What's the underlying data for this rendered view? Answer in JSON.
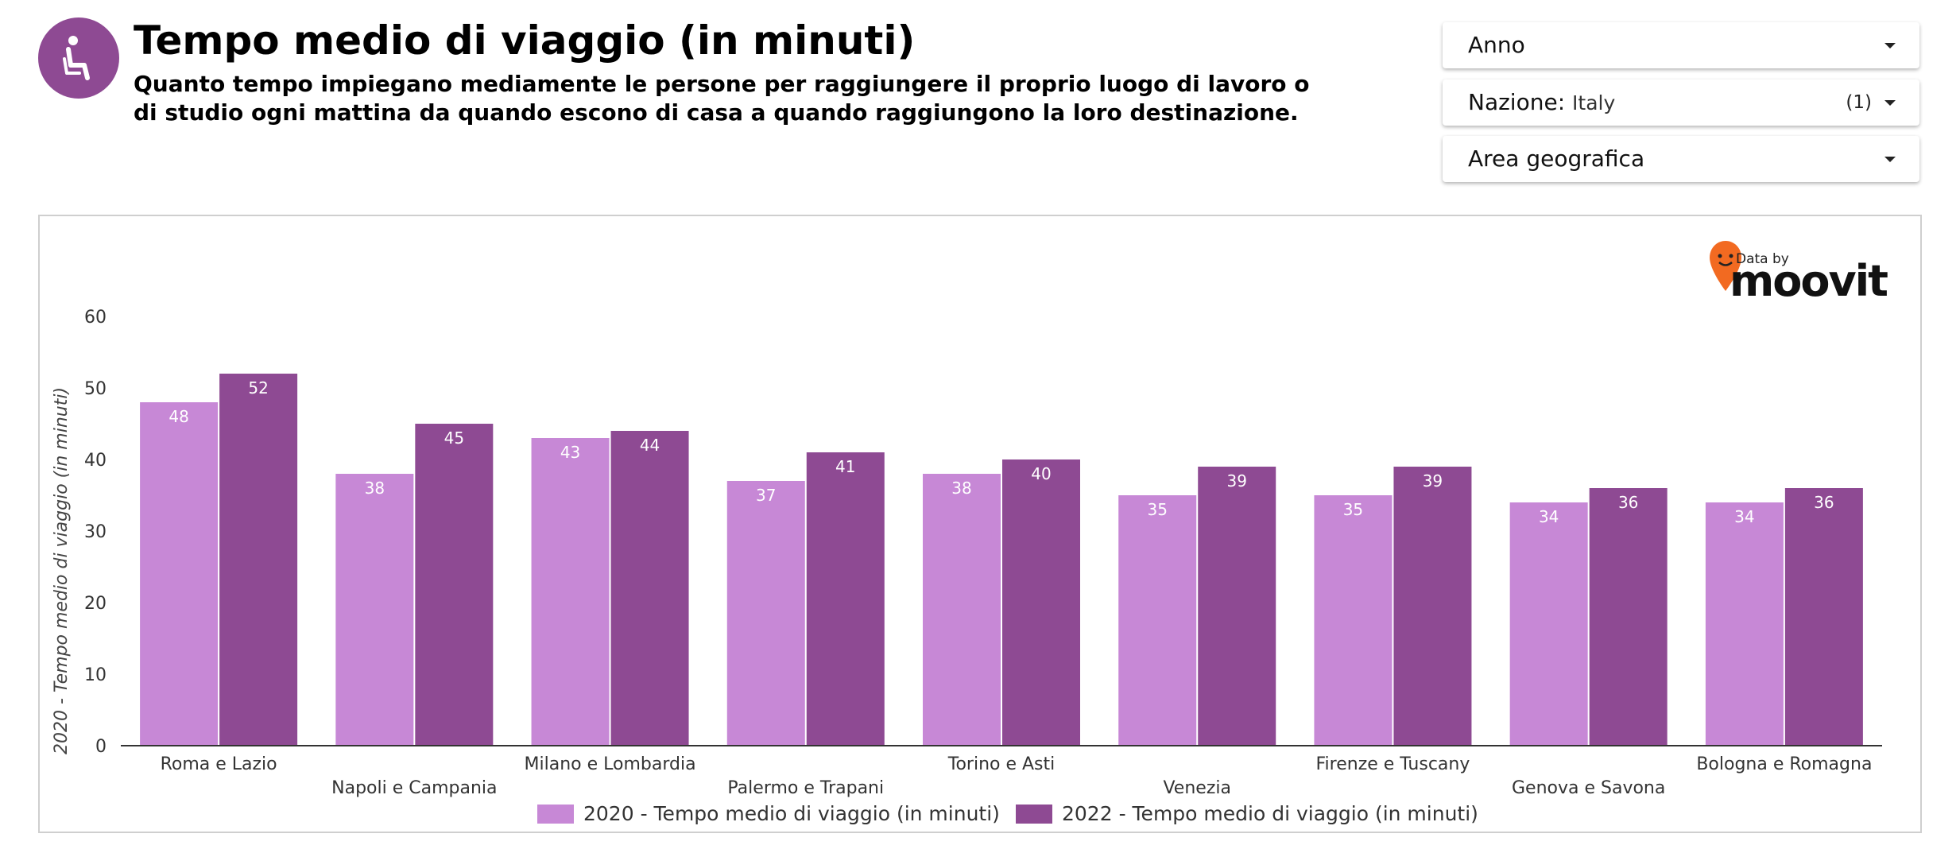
{
  "header": {
    "icon": "seated-passenger-icon",
    "title": "Tempo medio di viaggio (in minuti)",
    "subtitle": "Quanto tempo impiegano mediamente le persone per raggiungere il proprio luogo di lavoro o di studio ogni mattina da quando escono di casa a quando raggiungono la loro destinazione."
  },
  "filters": {
    "anno": {
      "label": "Anno"
    },
    "nazione": {
      "label": "Nazione",
      "value": "Italy",
      "count": "(1)"
    },
    "area": {
      "label": "Area geografica"
    }
  },
  "brand": {
    "small": "Data by",
    "name": "moovit",
    "color": "#f26a21"
  },
  "colors": {
    "series2020": "#c788d6",
    "series2022": "#8e4a93",
    "icon_bg": "#8e4a93"
  },
  "chart_data": {
    "type": "bar",
    "ylabel": "2020 - Tempo medio di viaggio (in minuti)",
    "ylim": [
      0,
      60
    ],
    "yticks": [
      "0",
      "10",
      "20",
      "30",
      "40",
      "50",
      "60"
    ],
    "categories": [
      "Roma e Lazio",
      "Napoli e Campania",
      "Milano e Lombardia",
      "Palermo e Trapani",
      "Torino e Asti",
      "Venezia",
      "Firenze e Tuscany",
      "Genova e Savona",
      "Bologna e Romagna"
    ],
    "series": [
      {
        "name": "2020 - Tempo medio di viaggio (in minuti)",
        "values": [
          48,
          38,
          43,
          37,
          38,
          35,
          35,
          34,
          34
        ]
      },
      {
        "name": "2022 - Tempo medio di viaggio (in minuti)",
        "values": [
          52,
          45,
          44,
          41,
          40,
          39,
          39,
          36,
          36
        ]
      }
    ],
    "legend": "bottom",
    "grid": false
  }
}
